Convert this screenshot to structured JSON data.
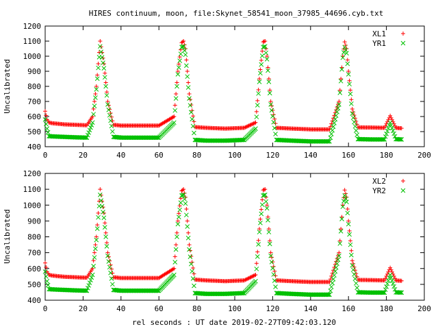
{
  "figure": {
    "title": "HIRES continuum, moon, file:Skynet_58541_moon_37985_44696.cyb.txt",
    "xlabel": "rel seconds : UT date 2019-02-27T09:42:03.120"
  },
  "colors": {
    "red": "#ff0000",
    "green": "#00c000"
  },
  "chart_data": [
    {
      "type": "scatter",
      "title": "",
      "xlabel": "",
      "ylabel": "Uncalibrated",
      "xlim": [
        0,
        200
      ],
      "ylim": [
        400,
        1200
      ],
      "xticks": [
        "0",
        "20",
        "40",
        "60",
        "80",
        "100",
        "120",
        "140",
        "160",
        "180",
        "200"
      ],
      "yticks": [
        "400",
        "500",
        "600",
        "700",
        "800",
        "900",
        "1000",
        "1100",
        "1200"
      ],
      "legend": "top-right",
      "series": [
        {
          "name": "XL1",
          "marker": "+",
          "color": "#ff0000",
          "x": [
            0,
            1,
            2,
            4,
            10,
            16,
            22,
            25,
            27,
            29,
            31,
            33,
            36,
            40,
            50,
            60,
            68,
            70,
            72,
            73,
            74,
            76,
            79,
            85,
            95,
            105,
            111,
            113,
            115,
            116,
            117,
            119,
            122,
            130,
            140,
            150,
            155,
            157,
            158,
            159,
            160,
            162,
            165,
            172,
            179,
            182,
            185,
            188
          ],
          "y": [
            635,
            580,
            560,
            555,
            548,
            545,
            542,
            600,
            800,
            1100,
            950,
            700,
            545,
            540,
            540,
            540,
            600,
            900,
            1090,
            1100,
            1050,
            750,
            530,
            525,
            520,
            525,
            560,
            850,
            1095,
            1100,
            1000,
            700,
            525,
            520,
            515,
            515,
            700,
            1000,
            1095,
            1050,
            900,
            650,
            528,
            527,
            525,
            605,
            525,
            522
          ]
        },
        {
          "name": "YR1",
          "marker": "x",
          "color": "#00c000",
          "x": [
            0,
            1,
            2,
            4,
            10,
            16,
            22,
            25,
            27,
            29,
            31,
            33,
            36,
            40,
            50,
            60,
            68,
            70,
            72,
            73,
            74,
            76,
            79,
            85,
            95,
            105,
            111,
            113,
            115,
            116,
            117,
            119,
            122,
            130,
            140,
            150,
            155,
            157,
            158,
            159,
            160,
            162,
            165,
            172,
            179,
            182,
            185,
            188
          ],
          "y": [
            580,
            520,
            470,
            468,
            465,
            462,
            460,
            560,
            780,
            1065,
            920,
            680,
            465,
            460,
            460,
            460,
            560,
            880,
            1060,
            1065,
            1010,
            720,
            445,
            440,
            440,
            445,
            520,
            830,
            1060,
            1065,
            980,
            680,
            445,
            440,
            435,
            435,
            680,
            990,
            1060,
            1020,
            880,
            620,
            450,
            448,
            448,
            560,
            450,
            448
          ]
        }
      ]
    },
    {
      "type": "scatter",
      "title": "",
      "xlabel": "rel seconds : UT date 2019-02-27T09:42:03.120",
      "ylabel": "Uncalibrated",
      "xlim": [
        0,
        200
      ],
      "ylim": [
        400,
        1200
      ],
      "xticks": [
        "0",
        "20",
        "40",
        "60",
        "80",
        "100",
        "120",
        "140",
        "160",
        "180",
        "200"
      ],
      "yticks": [
        "400",
        "500",
        "600",
        "700",
        "800",
        "900",
        "1000",
        "1100",
        "1200"
      ],
      "legend": "top-right",
      "series": [
        {
          "name": "XL2",
          "marker": "+",
          "color": "#ff0000",
          "x": [
            0,
            1,
            2,
            4,
            10,
            16,
            22,
            25,
            27,
            29,
            31,
            33,
            36,
            40,
            50,
            60,
            68,
            70,
            72,
            73,
            74,
            76,
            79,
            85,
            95,
            105,
            111,
            113,
            115,
            116,
            117,
            119,
            122,
            130,
            140,
            150,
            155,
            157,
            158,
            159,
            160,
            162,
            165,
            172,
            179,
            182,
            185,
            188
          ],
          "y": [
            635,
            580,
            560,
            555,
            548,
            545,
            542,
            600,
            800,
            1100,
            950,
            700,
            545,
            540,
            540,
            540,
            600,
            900,
            1090,
            1100,
            1050,
            750,
            530,
            525,
            520,
            525,
            560,
            850,
            1095,
            1100,
            1000,
            700,
            525,
            520,
            515,
            515,
            700,
            1000,
            1095,
            1050,
            900,
            650,
            528,
            527,
            525,
            605,
            525,
            522
          ]
        },
        {
          "name": "YR2",
          "marker": "x",
          "color": "#00c000",
          "x": [
            0,
            1,
            2,
            4,
            10,
            16,
            22,
            25,
            27,
            29,
            31,
            33,
            36,
            40,
            50,
            60,
            68,
            70,
            72,
            73,
            74,
            76,
            79,
            85,
            95,
            105,
            111,
            113,
            115,
            116,
            117,
            119,
            122,
            130,
            140,
            150,
            155,
            157,
            158,
            159,
            160,
            162,
            165,
            172,
            179,
            182,
            185,
            188
          ],
          "y": [
            580,
            520,
            470,
            468,
            465,
            462,
            460,
            560,
            780,
            1065,
            920,
            680,
            465,
            460,
            460,
            460,
            560,
            880,
            1060,
            1065,
            1010,
            720,
            445,
            440,
            440,
            445,
            520,
            830,
            1060,
            1065,
            980,
            680,
            445,
            440,
            435,
            435,
            680,
            990,
            1060,
            1020,
            880,
            620,
            450,
            448,
            448,
            560,
            450,
            448
          ]
        }
      ]
    }
  ]
}
